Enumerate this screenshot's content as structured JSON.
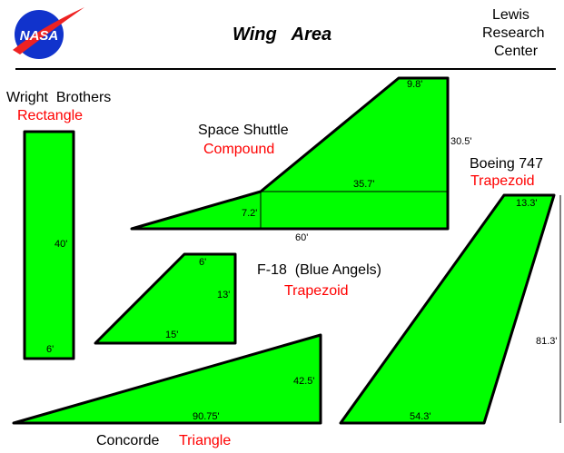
{
  "header": {
    "logo_text": "NASA",
    "title": "Wing   Area",
    "org_lines": [
      "Lewis",
      "Research",
      "Center"
    ]
  },
  "colors": {
    "fill": "#00ff00",
    "outline": "#000000",
    "shape_label": "#ff0000",
    "logo_blue": "#1133cc",
    "logo_red": "#ee2222"
  },
  "wings": {
    "wright": {
      "name": "Wright  Brothers",
      "shape": "Rectangle",
      "dims": [
        "40'",
        "6'"
      ]
    },
    "shuttle": {
      "name": "Space Shuttle",
      "shape": "Compound",
      "dims": [
        "9.8'",
        "30.5'",
        "35.7'",
        "7.2'",
        "60'"
      ]
    },
    "boeing": {
      "name": "Boeing 747",
      "shape": "Trapezoid",
      "dims": [
        "13.3'",
        "81.3'",
        "54.3'"
      ]
    },
    "f18": {
      "name": "F-18  (Blue Angels)",
      "shape": "Trapezoid",
      "dims": [
        "6'",
        "13'",
        "15'"
      ]
    },
    "concorde": {
      "name": "Concorde",
      "shape": "Triangle",
      "dims": [
        "42.5'",
        "90.75'"
      ]
    }
  }
}
